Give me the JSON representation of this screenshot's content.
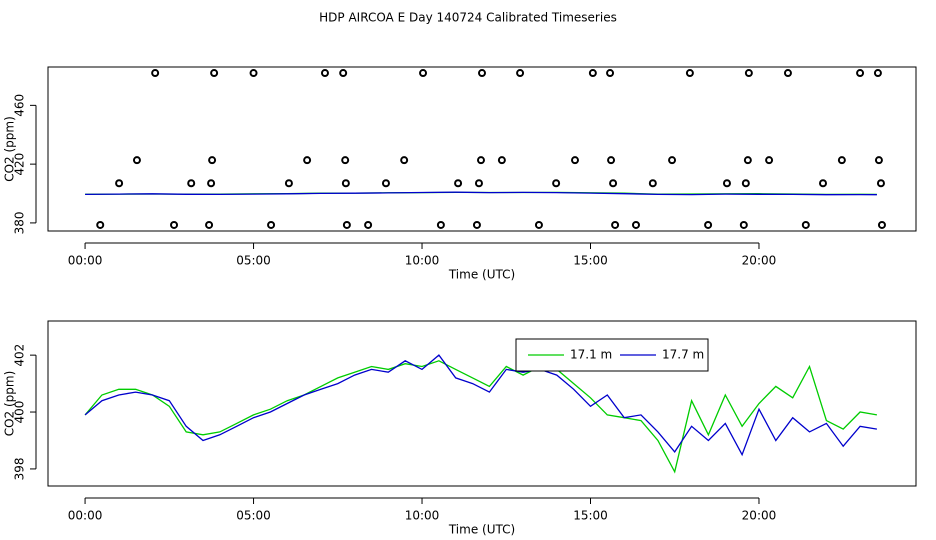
{
  "chart_data": [
    {
      "type": "line",
      "title": "HDP AIRCOA E  Day 140724  Calibrated Timeseries",
      "ylabel": "CO2 (ppm)",
      "xlabel": "Time (UTC)",
      "xlim": [
        -1.1,
        24.66
      ],
      "ylim": [
        374.5,
        486.1
      ],
      "xticks": [
        {
          "value": 0,
          "label": "00:00"
        },
        {
          "value": 5,
          "label": "05:00"
        },
        {
          "value": 10,
          "label": "10:00"
        },
        {
          "value": 15,
          "label": "15:00"
        },
        {
          "value": 20,
          "label": "20:00"
        }
      ],
      "yticks": [
        380,
        420,
        460
      ],
      "series": [
        {
          "color": "#00cc00",
          "x": [
            0,
            1,
            2,
            3,
            4,
            5,
            6,
            7,
            8,
            9,
            10,
            11,
            12,
            13,
            14,
            15,
            16,
            17,
            18,
            19,
            20,
            21,
            22,
            23,
            23.5
          ],
          "values": [
            399.5,
            399.6,
            399.7,
            399.6,
            399.6,
            399.8,
            399.9,
            400.2,
            400.3,
            400.5,
            400.6,
            400.8,
            400.7,
            400.7,
            400.8,
            400.5,
            400.2,
            399.6,
            399.7,
            399.8,
            399.9,
            399.7,
            399.4,
            399.5,
            399.4
          ]
        },
        {
          "color": "#0000cc",
          "x": [
            0,
            1,
            2,
            3,
            4,
            5,
            6,
            7,
            8,
            9,
            10,
            11,
            12,
            13,
            14,
            15,
            16,
            17,
            18,
            19,
            20,
            21,
            22,
            23,
            23.5
          ],
          "values": [
            399.4,
            399.6,
            399.8,
            399.5,
            399.4,
            399.6,
            399.8,
            400.1,
            400.2,
            400.4,
            400.7,
            400.9,
            400.6,
            400.8,
            400.6,
            400.3,
            399.9,
            399.4,
            399.3,
            399.6,
            399.5,
            399.4,
            399.2,
            399.3,
            399.2
          ]
        },
        {
          "type": "scatter",
          "color": "#000000",
          "x": [
            2.08,
            3.83,
            5.0,
            7.12,
            7.66,
            10.03,
            11.78,
            12.91,
            15.07,
            15.58,
            17.95,
            19.7,
            20.86,
            23.0,
            23.53,
            1.54,
            3.77,
            6.59,
            7.72,
            9.47,
            11.75,
            12.37,
            14.54,
            15.61,
            17.42,
            19.67,
            20.3,
            22.46,
            23.56,
            1.01,
            3.15,
            3.74,
            6.05,
            7.74,
            8.93,
            11.07,
            11.69,
            13.98,
            15.67,
            16.85,
            19.05,
            19.61,
            21.9,
            23.62,
            0.45,
            2.64,
            3.68,
            5.52,
            7.77,
            8.4,
            10.56,
            11.63,
            13.47,
            15.73,
            16.35,
            18.49,
            19.55,
            21.39,
            23.65
          ],
          "values": [
            482,
            482,
            482,
            482,
            482,
            482,
            482,
            482,
            482,
            482,
            482,
            482,
            482,
            482,
            482,
            422.7,
            422.7,
            422.7,
            422.7,
            422.7,
            422.7,
            422.7,
            422.7,
            422.7,
            422.7,
            422.7,
            422.7,
            422.7,
            422.7,
            407,
            407,
            407,
            407,
            407,
            407,
            407,
            407,
            407,
            407,
            407,
            407,
            407,
            407,
            407,
            378.6,
            378.6,
            378.6,
            378.6,
            378.6,
            378.6,
            378.6,
            378.6,
            378.6,
            378.6,
            378.6,
            378.6,
            378.6,
            378.6,
            378.6
          ]
        }
      ]
    },
    {
      "type": "line",
      "ylabel": "CO2 (ppm)",
      "xlabel": "Time (UTC)",
      "xlim": [
        -1.1,
        24.66
      ],
      "ylim": [
        397.4,
        403.2
      ],
      "xticks": [
        {
          "value": 0,
          "label": "00:00"
        },
        {
          "value": 5,
          "label": "05:00"
        },
        {
          "value": 10,
          "label": "10:00"
        },
        {
          "value": 15,
          "label": "15:00"
        },
        {
          "value": 20,
          "label": "20:00"
        }
      ],
      "yticks": [
        398,
        400,
        402
      ],
      "legend": "top-right",
      "x": [
        0,
        0.5,
        1,
        1.5,
        2,
        2.5,
        3,
        3.5,
        4,
        4.5,
        5,
        5.5,
        6,
        6.5,
        7,
        7.5,
        8,
        8.5,
        9,
        9.5,
        10,
        10.5,
        11,
        11.5,
        12,
        12.5,
        13,
        13.5,
        14,
        14.5,
        15,
        15.5,
        16,
        16.5,
        17,
        17.5,
        18,
        18.5,
        19,
        19.5,
        20,
        20.5,
        21,
        21.5,
        22,
        22.5,
        23,
        23.5
      ],
      "series": [
        {
          "name": "17.1 m",
          "color": "#00cc00",
          "values": [
            399.9,
            400.6,
            400.8,
            400.8,
            400.6,
            400.2,
            399.3,
            399.2,
            399.3,
            399.6,
            399.9,
            400.1,
            400.4,
            400.6,
            400.9,
            401.2,
            401.4,
            401.6,
            401.5,
            401.7,
            401.6,
            401.8,
            401.5,
            401.2,
            400.9,
            401.6,
            401.3,
            401.6,
            401.5,
            401.0,
            400.5,
            399.9,
            399.8,
            399.7,
            399.0,
            397.9,
            400.4,
            399.2,
            400.6,
            399.5,
            400.3,
            400.9,
            400.5,
            401.6,
            399.7,
            399.4,
            400.0,
            399.9
          ]
        },
        {
          "name": "17.7 m",
          "color": "#0000cc",
          "values": [
            399.9,
            400.4,
            400.6,
            400.7,
            400.6,
            400.4,
            399.5,
            399.0,
            399.2,
            399.5,
            399.8,
            400.0,
            400.3,
            400.6,
            400.8,
            401.0,
            401.3,
            401.5,
            401.4,
            401.8,
            401.5,
            402.0,
            401.2,
            401.0,
            400.7,
            401.5,
            401.4,
            401.5,
            401.3,
            400.8,
            400.2,
            400.6,
            399.8,
            399.9,
            399.3,
            398.6,
            399.5,
            399.0,
            399.6,
            398.5,
            400.1,
            399.0,
            399.8,
            399.3,
            399.6,
            398.8,
            399.5,
            399.4
          ]
        }
      ]
    }
  ]
}
